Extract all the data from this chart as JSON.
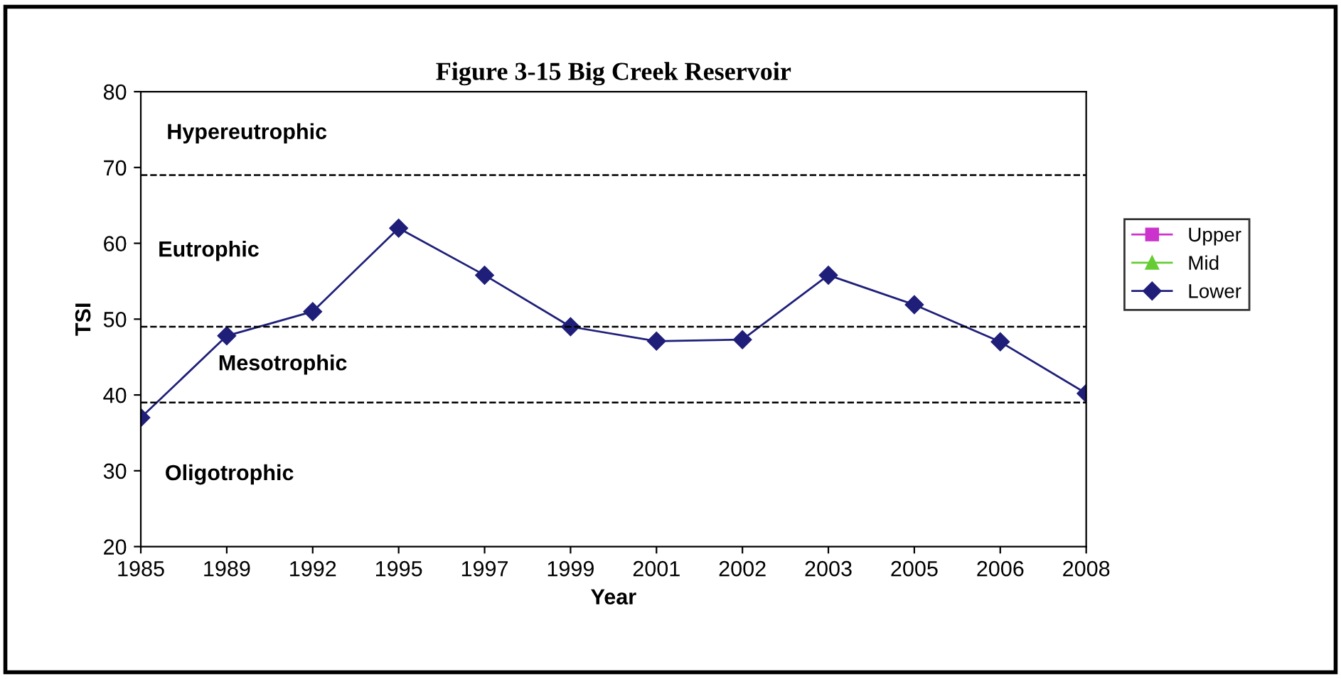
{
  "chart_data": {
    "type": "line",
    "title": "Figure 3-15 Big Creek Reservoir",
    "xlabel": "Year",
    "ylabel": "TSI",
    "categories": [
      "1985",
      "1989",
      "1992",
      "1995",
      "1997",
      "1999",
      "2001",
      "2002",
      "2003",
      "2005",
      "2006",
      "2008"
    ],
    "series": [
      {
        "name": "Upper",
        "color": "#cc33cc",
        "marker": "square",
        "values": [
          null,
          null,
          null,
          null,
          null,
          null,
          null,
          null,
          null,
          null,
          null,
          null
        ]
      },
      {
        "name": "Mid",
        "color": "#66cc33",
        "marker": "triangle",
        "values": [
          null,
          null,
          null,
          null,
          null,
          null,
          null,
          null,
          null,
          null,
          null,
          null
        ]
      },
      {
        "name": "Lower",
        "color": "#1f1f7a",
        "marker": "diamond",
        "values": [
          37,
          47.8,
          51,
          62,
          55.8,
          49,
          47.1,
          47.3,
          55.8,
          51.9,
          47,
          40.2
        ]
      }
    ],
    "ylim": [
      20,
      80
    ],
    "yticks": [
      20,
      30,
      40,
      50,
      60,
      70,
      80
    ],
    "ref_lines": [
      {
        "axis": "y",
        "value": 69,
        "color": "#000000",
        "line_style": "dashed"
      },
      {
        "axis": "y",
        "value": 49,
        "color": "#000000",
        "line_style": "dashed"
      },
      {
        "axis": "y",
        "value": 39,
        "color": "#000000",
        "line_style": "dashed"
      }
    ],
    "annotations": [
      "Hypereutrophic",
      "Eutrophic",
      "Mesotrophic",
      "Oligotrophic"
    ],
    "legend": "right",
    "grid": false,
    "line_style": "solid"
  }
}
